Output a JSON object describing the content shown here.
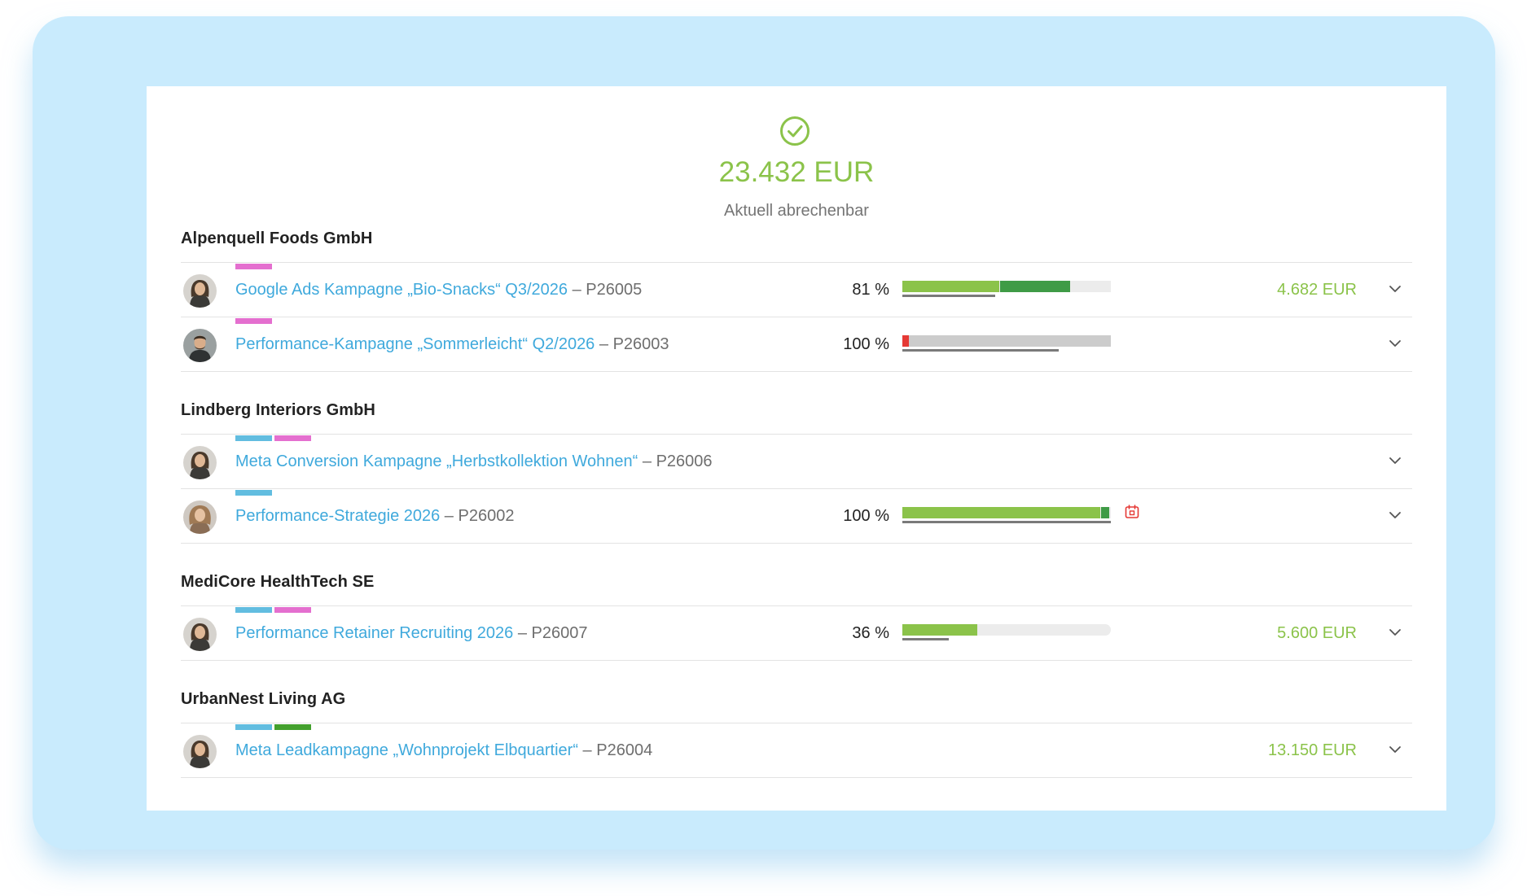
{
  "summary": {
    "total": "23.432 EUR",
    "label": "Aktuell abrechenbar"
  },
  "colors": {
    "accent_green": "#8bc34a",
    "link_blue": "#3fa9dc",
    "tag_pink": "#e46fcf",
    "tag_blue": "#62bde0",
    "tag_green": "#43a02d",
    "bar_dark_green": "#3f9b46",
    "bar_red": "#e53935"
  },
  "groups": [
    {
      "client": "Alpenquell Foods GmbH",
      "projects": [
        {
          "title": "Google Ads Kampagne „Bio-Snacks“ Q3/2026",
          "separator": " – ",
          "number": "P26005",
          "tags": [
            "pink"
          ],
          "percent": "81 %",
          "progress": {
            "budget_used_fraction": 0.81,
            "billed_fraction": 0.47,
            "light_green_fraction": 0.47,
            "dark_green_fraction": 0.34,
            "red_fraction": 0,
            "remaining_color": "#ececec",
            "underline_fraction": 0.45
          },
          "amount": "4.682 EUR",
          "avatar": "female"
        },
        {
          "title": "Performance-Kampagne „Sommerleicht“ Q2/2026",
          "separator": " – ",
          "number": "P26003",
          "tags": [
            "pink"
          ],
          "percent": "100 %",
          "progress": {
            "budget_used_fraction": 1.0,
            "light_green_fraction": 0,
            "dark_green_fraction": 0,
            "red_fraction": 0.03,
            "remaining_color": "#cccccc",
            "underline_fraction": 0.75
          },
          "amount": "",
          "avatar": "male"
        }
      ]
    },
    {
      "client": "Lindberg Interiors GmbH",
      "projects": [
        {
          "title": "Meta Conversion Kampagne „Herbstkollektion Wohnen“",
          "separator": " – ",
          "number": "P26006",
          "tags": [
            "blue",
            "pink"
          ],
          "percent": "",
          "progress": null,
          "amount": "",
          "avatar": "female"
        },
        {
          "title": "Performance-Strategie 2026",
          "separator": " – ",
          "number": "P26002",
          "tags": [
            "blue"
          ],
          "percent": "100 %",
          "progress": {
            "budget_used_fraction": 1.0,
            "light_green_fraction": 0.95,
            "dark_green_fraction": 0.04,
            "red_fraction": 0,
            "remaining_color": "#ececec",
            "underline_fraction": 1.0
          },
          "amount": "",
          "calendar_icon": "calendar-alert-icon",
          "avatar": "female-curly"
        }
      ]
    },
    {
      "client": "MediCore HealthTech SE",
      "projects": [
        {
          "title": "Performance Retainer Recruiting 2026",
          "separator": " – ",
          "number": "P26007",
          "tags": [
            "blue",
            "pink"
          ],
          "percent": "36 %",
          "progress": {
            "budget_used_fraction": 0.36,
            "light_green_fraction": 0.36,
            "dark_green_fraction": 0,
            "red_fraction": 0,
            "remaining_color": "#ececec",
            "underline_fraction": 0.22
          },
          "amount": "5.600 EUR",
          "avatar": "female"
        }
      ]
    },
    {
      "client": "UrbanNest Living AG",
      "projects": [
        {
          "title": "Meta Leadkampagne „Wohnprojekt Elbquartier“",
          "separator": " – ",
          "number": "P26004",
          "tags": [
            "blue",
            "green"
          ],
          "percent": "",
          "progress": null,
          "amount": "13.150 EUR",
          "avatar": "female"
        }
      ]
    }
  ]
}
